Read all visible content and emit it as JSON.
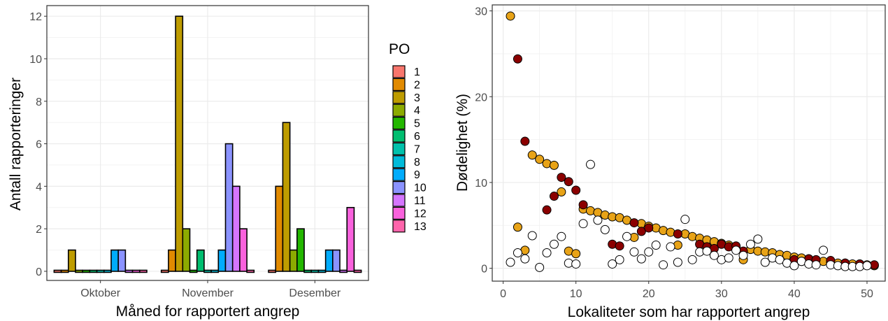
{
  "chart_data": [
    {
      "type": "bar",
      "xlabel": "Måned for rapportert angrep",
      "ylabel": "Antall rapporteringer",
      "categories": [
        "Oktober",
        "November",
        "Desember"
      ],
      "ylim": [
        0,
        12.5
      ],
      "yticks": [
        0,
        2,
        4,
        6,
        8,
        10,
        12
      ],
      "grid": true,
      "legend": {
        "title": "PO",
        "position": "right"
      },
      "series": [
        {
          "name": "1",
          "color": "#F8766D",
          "values": [
            0,
            0,
            0
          ]
        },
        {
          "name": "2",
          "color": "#E18A00",
          "values": [
            0,
            1,
            4
          ]
        },
        {
          "name": "3",
          "color": "#BE9C00",
          "values": [
            1,
            12,
            7
          ]
        },
        {
          "name": "4",
          "color": "#8CAB00",
          "values": [
            0,
            2,
            1
          ]
        },
        {
          "name": "5",
          "color": "#24B700",
          "values": [
            0,
            0,
            2
          ]
        },
        {
          "name": "6",
          "color": "#00BE70",
          "values": [
            0,
            1,
            0
          ]
        },
        {
          "name": "7",
          "color": "#00C1AB",
          "values": [
            0,
            0,
            0
          ]
        },
        {
          "name": "8",
          "color": "#00BBDA",
          "values": [
            0,
            0,
            0
          ]
        },
        {
          "name": "9",
          "color": "#00ACFC",
          "values": [
            1,
            1,
            1
          ]
        },
        {
          "name": "10",
          "color": "#8B93FF",
          "values": [
            1,
            6,
            1
          ]
        },
        {
          "name": "11",
          "color": "#D575FE",
          "values": [
            0,
            4,
            0
          ]
        },
        {
          "name": "12",
          "color": "#F962DD",
          "values": [
            0,
            2,
            3
          ]
        },
        {
          "name": "13",
          "color": "#FF65AC",
          "values": [
            0,
            0,
            0
          ]
        }
      ]
    },
    {
      "type": "scatter",
      "xlabel": "Lokaliteter som har rapportert angrep",
      "ylabel": "Dødelighet (%)",
      "xlim": [
        -1.5,
        52.5
      ],
      "ylim": [
        -1.5,
        30.7
      ],
      "xticks": [
        0,
        10,
        20,
        30,
        40,
        50
      ],
      "yticks": [
        0,
        10,
        20,
        30
      ],
      "grid": true,
      "series": [
        {
          "color": "#E8A317",
          "points": [
            [
              1,
              29.4
            ],
            [
              2,
              4.8
            ],
            [
              3,
              2.1
            ],
            [
              4,
              13.2
            ],
            [
              5,
              12.7
            ],
            [
              6,
              12.2
            ],
            [
              7,
              12.0
            ],
            [
              8,
              8.9
            ],
            [
              9,
              2.0
            ],
            [
              10,
              1.7
            ],
            [
              11,
              6.9
            ],
            [
              12,
              6.7
            ],
            [
              13,
              6.5
            ],
            [
              14,
              6.2
            ],
            [
              15,
              6.0
            ],
            [
              16,
              5.9
            ],
            [
              17,
              5.6
            ],
            [
              18,
              3.6
            ],
            [
              19,
              5.2
            ],
            [
              20,
              4.9
            ],
            [
              21,
              4.7
            ],
            [
              22,
              4.4
            ],
            [
              23,
              4.2
            ],
            [
              24,
              2.7
            ],
            [
              25,
              4.0
            ],
            [
              26,
              3.7
            ],
            [
              27,
              3.5
            ],
            [
              28,
              3.3
            ],
            [
              29,
              3.1
            ],
            [
              30,
              2.9
            ],
            [
              31,
              2.7
            ],
            [
              32,
              2.5
            ],
            [
              33,
              1.0
            ],
            [
              34,
              2.2
            ],
            [
              35,
              2.0
            ],
            [
              36,
              1.9
            ],
            [
              37,
              1.8
            ],
            [
              38,
              1.6
            ],
            [
              39,
              1.5
            ],
            [
              40,
              1.3
            ],
            [
              41,
              1.2
            ],
            [
              42,
              1.1
            ],
            [
              43,
              0.9
            ],
            [
              44,
              0.8
            ],
            [
              45,
              0.7
            ],
            [
              46,
              0.6
            ],
            [
              47,
              0.6
            ],
            [
              48,
              0.5
            ],
            [
              49,
              0.5
            ],
            [
              50,
              0.4
            ],
            [
              51,
              0.3
            ]
          ]
        },
        {
          "color": "#8B0000",
          "points": [
            [
              2,
              24.4
            ],
            [
              3,
              14.8
            ],
            [
              6,
              6.8
            ],
            [
              7,
              8.4
            ],
            [
              8,
              10.6
            ],
            [
              9,
              10.1
            ],
            [
              10,
              9.1
            ],
            [
              11,
              7.4
            ],
            [
              15,
              2.8
            ],
            [
              16,
              2.6
            ],
            [
              18,
              5.3
            ],
            [
              19,
              4.3
            ],
            [
              20,
              4.7
            ],
            [
              24,
              4.0
            ],
            [
              27,
              2.8
            ],
            [
              28,
              2.5
            ],
            [
              29,
              2.3
            ],
            [
              30,
              2.8
            ],
            [
              31,
              2.5
            ],
            [
              32,
              2.6
            ],
            [
              33,
              2.0
            ],
            [
              40,
              1.0
            ],
            [
              41,
              0.8
            ],
            [
              42,
              1.1
            ],
            [
              43,
              1.0
            ],
            [
              45,
              0.9
            ],
            [
              47,
              0.6
            ],
            [
              49,
              0.5
            ],
            [
              51,
              0.4
            ]
          ]
        },
        {
          "color": "#FFFFFF",
          "points": [
            [
              1,
              0.7
            ],
            [
              2,
              1.8
            ],
            [
              3,
              1.1
            ],
            [
              4,
              3.8
            ],
            [
              5,
              0.1
            ],
            [
              6,
              1.8
            ],
            [
              7,
              2.8
            ],
            [
              8,
              3.7
            ],
            [
              9,
              0.6
            ],
            [
              10,
              0.5
            ],
            [
              11,
              5.2
            ],
            [
              12,
              12.1
            ],
            [
              13,
              5.6
            ],
            [
              14,
              4.5
            ],
            [
              15,
              0.5
            ],
            [
              16,
              1.0
            ],
            [
              17,
              3.7
            ],
            [
              18,
              1.9
            ],
            [
              19,
              1.1
            ],
            [
              20,
              1.9
            ],
            [
              21,
              2.7
            ],
            [
              22,
              0.4
            ],
            [
              23,
              2.5
            ],
            [
              24,
              0.7
            ],
            [
              25,
              5.7
            ],
            [
              26,
              1.0
            ],
            [
              27,
              1.9
            ],
            [
              28,
              2.0
            ],
            [
              29,
              1.5
            ],
            [
              30,
              1.0
            ],
            [
              31,
              1.2
            ],
            [
              32,
              2.1
            ],
            [
              33,
              1.5
            ],
            [
              34,
              2.8
            ],
            [
              35,
              3.4
            ],
            [
              36,
              0.7
            ],
            [
              37,
              1.2
            ],
            [
              38,
              1.0
            ],
            [
              39,
              0.6
            ],
            [
              40,
              0.3
            ],
            [
              41,
              0.8
            ],
            [
              42,
              0.5
            ],
            [
              43,
              0.4
            ],
            [
              44,
              2.1
            ],
            [
              45,
              0.4
            ],
            [
              46,
              0.3
            ],
            [
              47,
              0.2
            ],
            [
              48,
              0.2
            ],
            [
              49,
              0.2
            ],
            [
              50,
              0.3
            ]
          ]
        }
      ]
    }
  ]
}
